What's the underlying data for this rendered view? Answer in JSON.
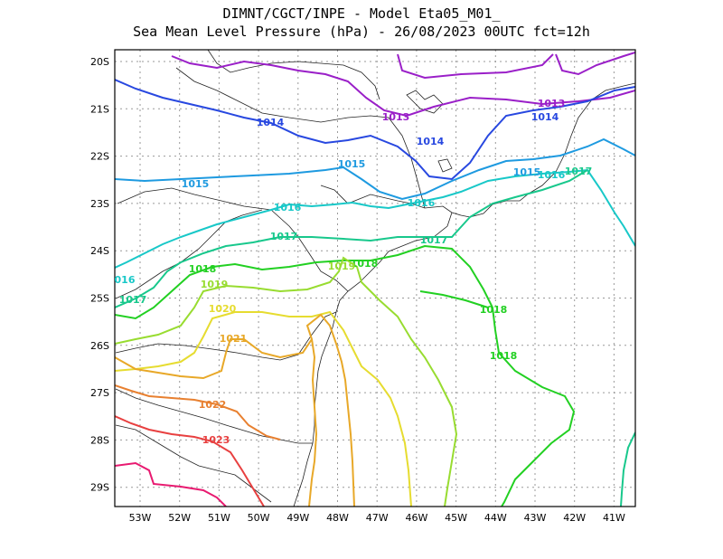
{
  "header": {
    "line1": "DIMNT/CGCT/INPE -  Model Eta05_M01_",
    "line2": "Sea Mean Level Pressure (hPa) - 26/08/2023 00UTC fct=12h"
  },
  "axes": {
    "lat_labels": [
      "20S",
      "21S",
      "22S",
      "23S",
      "24S",
      "25S",
      "26S",
      "27S",
      "28S",
      "29S"
    ],
    "lon_labels": [
      "53W",
      "52W",
      "51W",
      "50W",
      "49W",
      "48W",
      "47W",
      "46W",
      "45W",
      "44W",
      "43W",
      "42W",
      "41W"
    ]
  },
  "isobars": [
    {
      "value": "1013",
      "color": "#9a1fc8"
    },
    {
      "value": "1014",
      "color": "#2848e0"
    },
    {
      "value": "1015",
      "color": "#1e9ae0"
    },
    {
      "value": "1016",
      "color": "#18c8c8"
    },
    {
      "value": "1017",
      "color": "#18c88c"
    },
    {
      "value": "1018",
      "color": "#22d022"
    },
    {
      "value": "1019",
      "color": "#98dc30"
    },
    {
      "value": "1020",
      "color": "#e6dc30"
    },
    {
      "value": "1021",
      "color": "#e8a828"
    },
    {
      "value": "1022",
      "color": "#e88030"
    },
    {
      "value": "1023",
      "color": "#e84040"
    }
  ],
  "contour_labels": {
    "l1013a": "1013",
    "l1013b": "1013",
    "l1014a": "1014",
    "l1014b": "1014",
    "l1014c": "1014",
    "l1015a": "1015",
    "l1015b": "1015",
    "l1015c": "1015",
    "l1016a": "1016",
    "l1016b": "1016",
    "l1016c": "1016",
    "l1016d": "016",
    "l1017a": "1017",
    "l1017b": "1017",
    "l1017c": "1017",
    "l1017d": "1017",
    "l1018a": "1018",
    "l1018b": "1018",
    "l1018c": "1018",
    "l1018d": "1018",
    "l1019a": "1019",
    "l1019b": "1019",
    "l1020a": "1020",
    "l1021a": "1021",
    "l1022a": "1022",
    "l1023a": "1023"
  }
}
